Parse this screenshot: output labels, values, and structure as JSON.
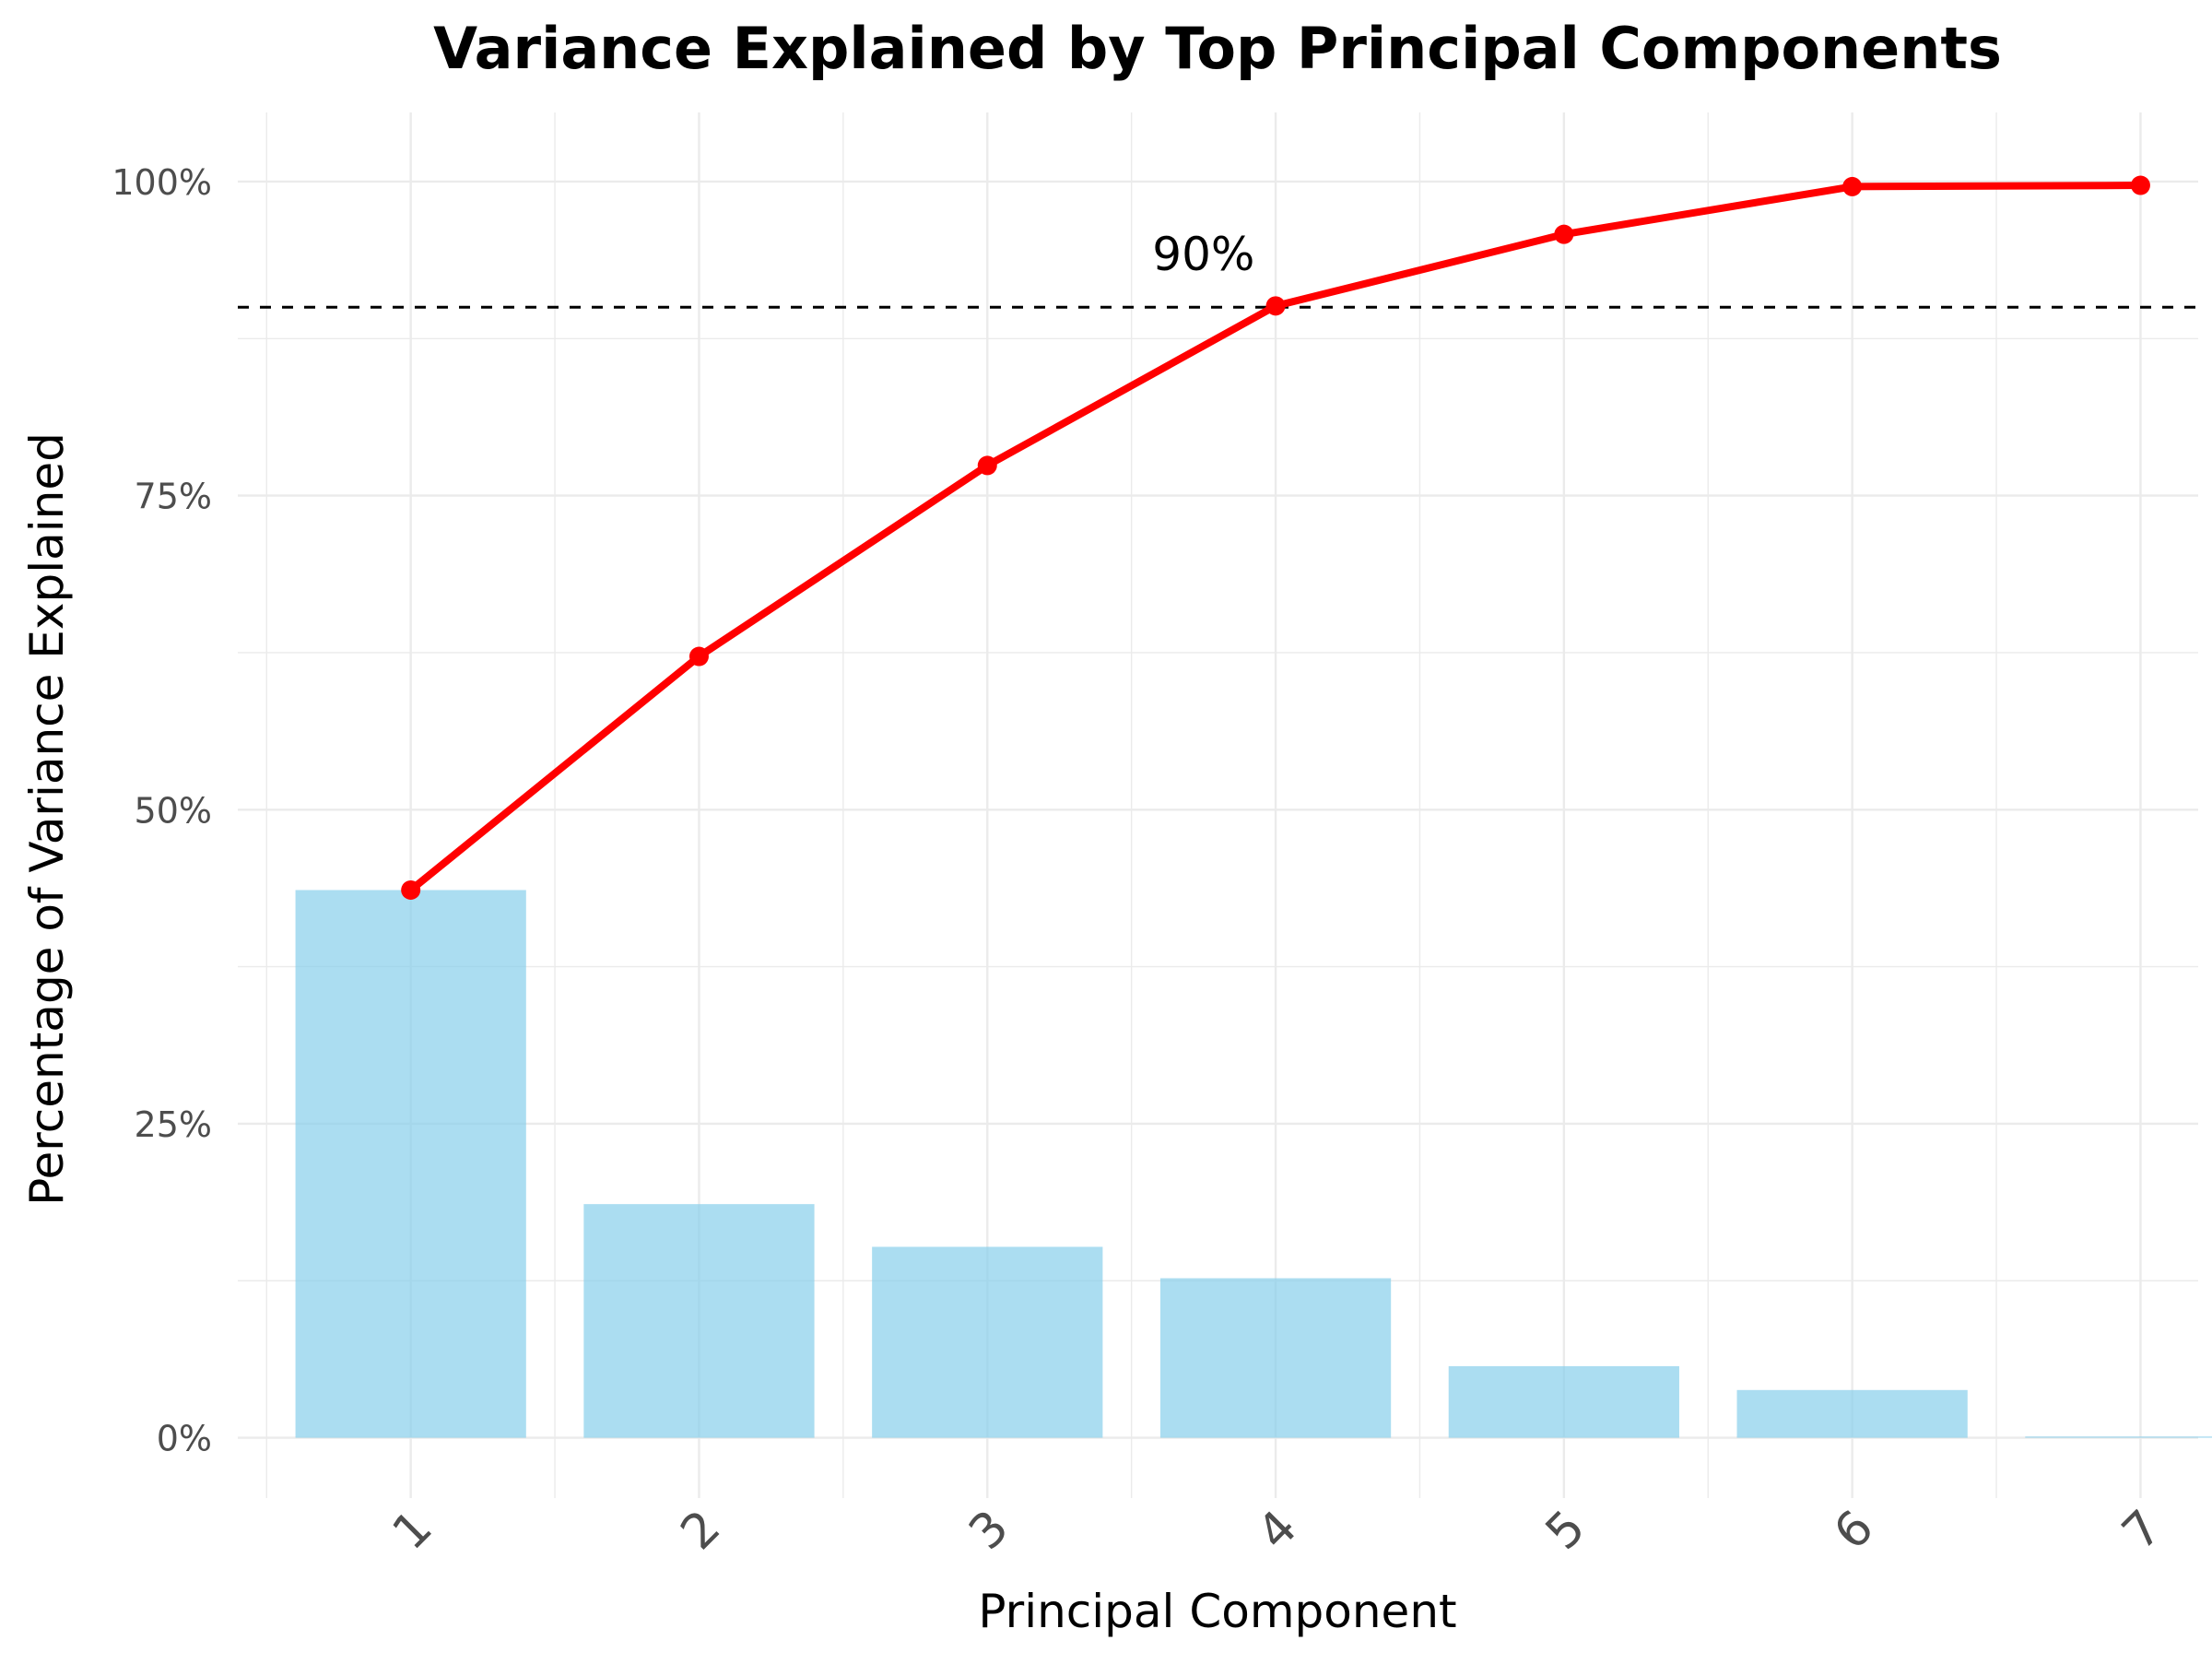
{
  "chart_data": {
    "type": "bar",
    "title": "Variance Explained by Top Principal Components",
    "xlabel": "Principal Component",
    "ylabel": "Percentage of Variance Explained",
    "categories": [
      "1",
      "2",
      "3",
      "4",
      "5",
      "6",
      "7"
    ],
    "series": [
      {
        "type": "bar",
        "values": [
          43.6,
          18.6,
          15.2,
          12.7,
          5.7,
          3.8,
          0.1
        ],
        "color": "#87ceeb"
      },
      {
        "type": "line",
        "values": [
          43.6,
          62.2,
          77.4,
          90.1,
          95.8,
          99.6,
          99.7
        ],
        "color": "#ff0000"
      }
    ],
    "yticks": [
      0,
      25,
      50,
      75,
      100
    ],
    "ytick_labels": [
      "0%",
      "25%",
      "50%",
      "75%",
      "100%"
    ],
    "ylim": [
      -4.8,
      105.5
    ],
    "reference_line": {
      "y": 90,
      "style": "dashed",
      "color": "#000000",
      "label": "90%"
    },
    "grid": true,
    "x_tick_rotation": 45,
    "legend": "none"
  }
}
